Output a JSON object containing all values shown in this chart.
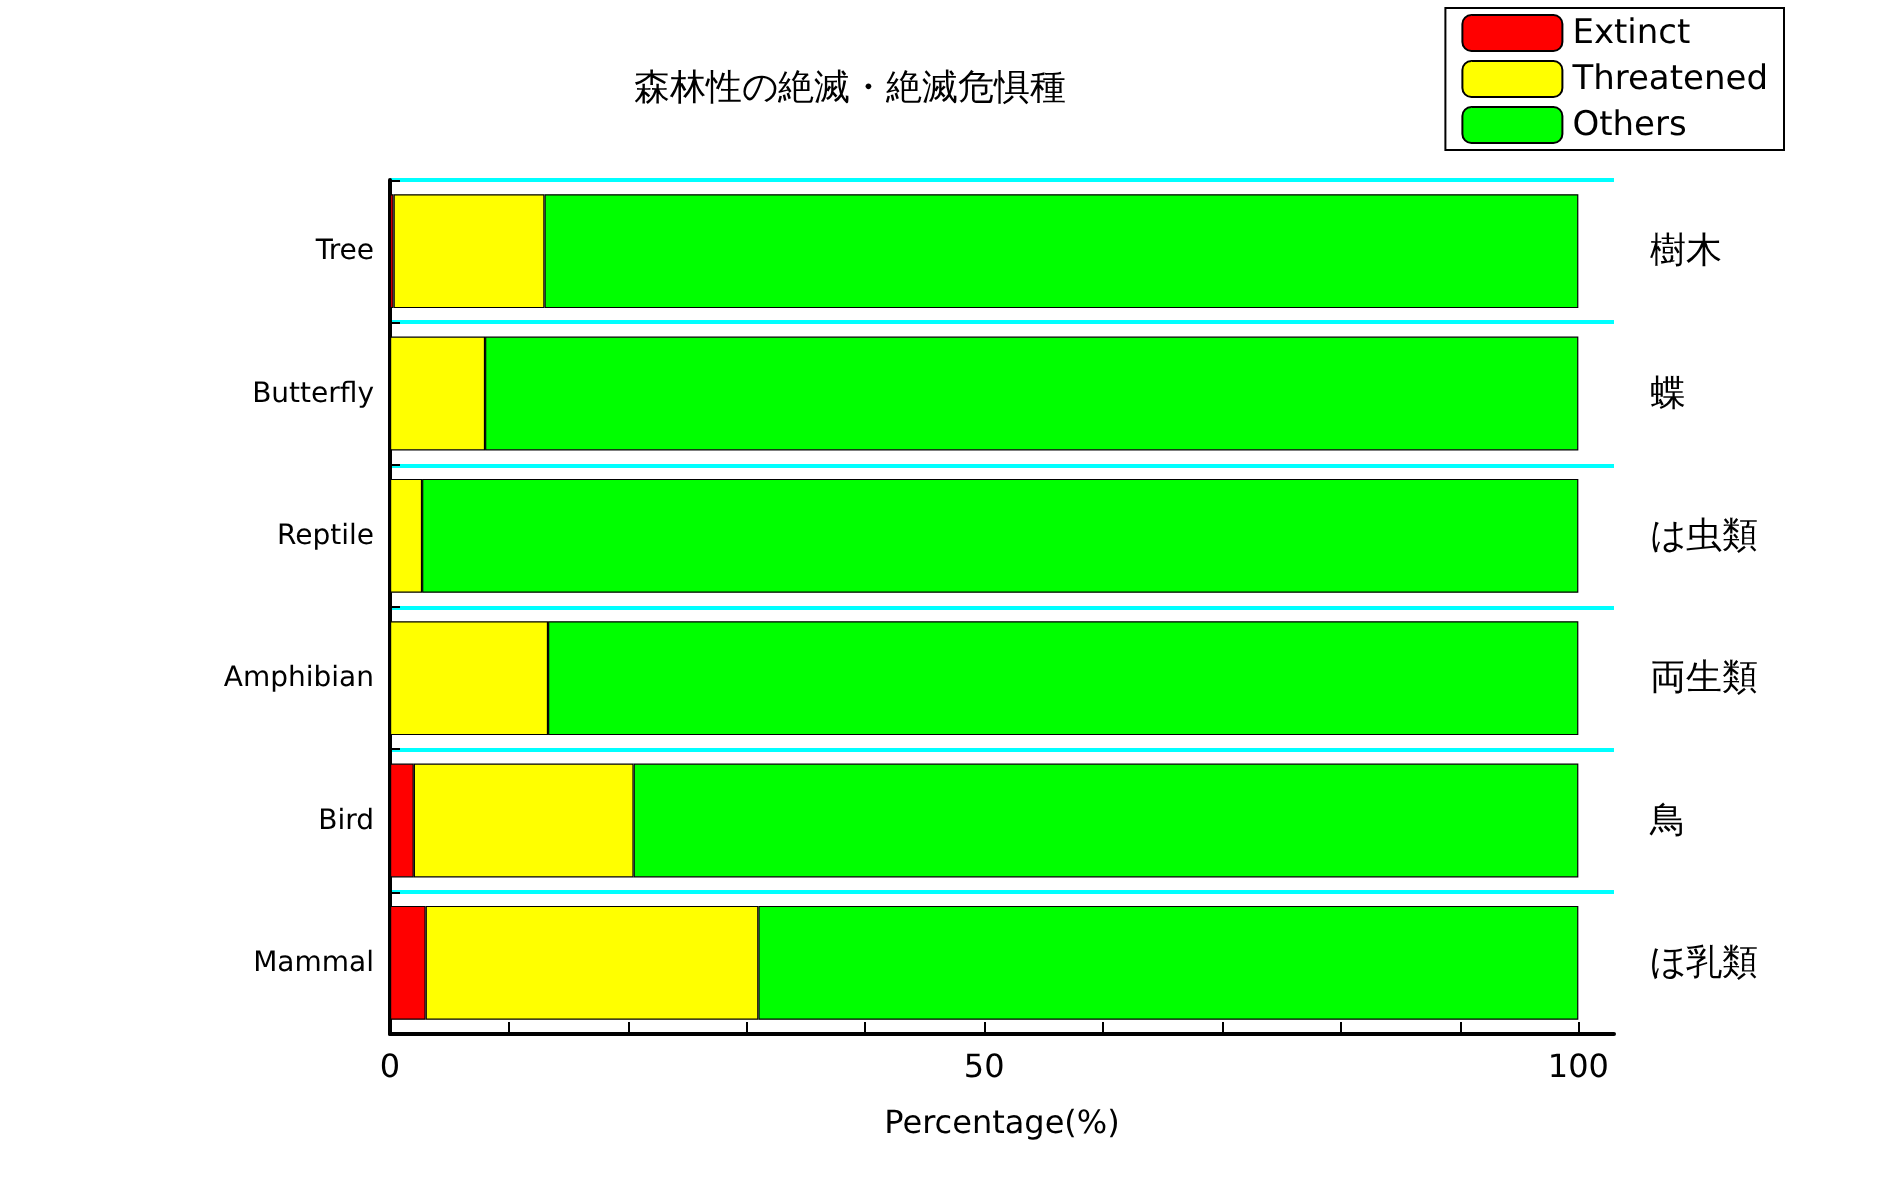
{
  "chart_data": {
    "type": "bar",
    "orientation": "horizontal",
    "stacked": true,
    "title": "森林性の絶滅・絶滅危惧種",
    "xlabel": "Percentage(%)",
    "categories": [
      "Tree",
      "Butterfly",
      "Reptile",
      "Amphibian",
      "Bird",
      "Mammal"
    ],
    "y2_categories": [
      "樹木",
      "蝶",
      "は虫類",
      "両生類",
      "鳥",
      "ほ乳類"
    ],
    "series": [
      {
        "name": "Extinct",
        "color": "#ff0000",
        "values": [
          0.3,
          0,
          0,
          0,
          2,
          3
        ]
      },
      {
        "name": "Threatened",
        "color": "#ffff00",
        "values": [
          12.7,
          8,
          2.7,
          13.3,
          18.5,
          28
        ]
      },
      {
        "name": "Others",
        "color": "#00ff00",
        "values": [
          87,
          92,
          97.3,
          86.7,
          79.5,
          69
        ]
      }
    ],
    "xlim": [
      0,
      103
    ],
    "xticks": [
      0,
      {
        "value": 10,
        "label": null
      },
      {
        "value": 20,
        "label": null
      },
      {
        "value": 30,
        "label": null
      },
      {
        "value": 40,
        "label": null
      },
      50,
      {
        "value": 60,
        "label": null
      },
      {
        "value": 70,
        "label": null
      },
      {
        "value": 80,
        "label": null
      },
      {
        "value": 90,
        "label": null
      },
      100
    ],
    "grid": "y",
    "legend": "top right"
  }
}
